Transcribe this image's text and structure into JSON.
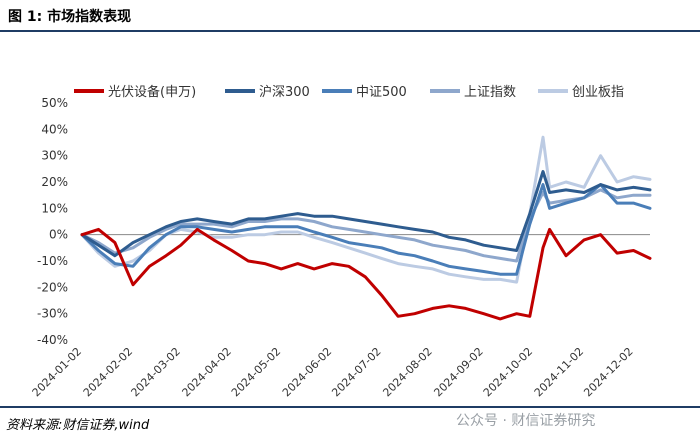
{
  "header": {
    "figure_title": "图 1:  市场指数表现"
  },
  "footer": {
    "source": "资料来源:财信证券,wind",
    "watermark": "公众号 · 财信证券研究"
  },
  "chart_data": {
    "type": "line",
    "title": "",
    "xlabel": "",
    "ylabel": "",
    "ylim": [
      -40,
      50
    ],
    "yticks": [
      -40,
      -30,
      -20,
      -10,
      0,
      10,
      20,
      30,
      40,
      50
    ],
    "ytick_labels": [
      "-40%",
      "-30%",
      "-20%",
      "-10%",
      "0%",
      "10%",
      "20%",
      "30%",
      "40%",
      "50%"
    ],
    "xticks": [
      "2024-01-02",
      "2024-02-02",
      "2024-03-02",
      "2024-04-02",
      "2024-05-02",
      "2024-06-02",
      "2024-07-02",
      "2024-08-02",
      "2024-09-02",
      "2024-10-02",
      "2024-11-02",
      "2024-12-02"
    ],
    "grid": false,
    "legend_position": "top",
    "x": [
      "2024-01-02",
      "2024-01-12",
      "2024-01-22",
      "2024-02-02",
      "2024-02-12",
      "2024-02-22",
      "2024-03-02",
      "2024-03-12",
      "2024-03-22",
      "2024-04-02",
      "2024-04-12",
      "2024-04-22",
      "2024-05-02",
      "2024-05-12",
      "2024-05-22",
      "2024-06-02",
      "2024-06-12",
      "2024-06-22",
      "2024-07-02",
      "2024-07-12",
      "2024-07-22",
      "2024-08-02",
      "2024-08-12",
      "2024-08-22",
      "2024-09-02",
      "2024-09-12",
      "2024-09-22",
      "2024-09-30",
      "2024-10-08",
      "2024-10-12",
      "2024-10-22",
      "2024-11-02",
      "2024-11-12",
      "2024-11-22",
      "2024-12-02",
      "2024-12-12"
    ],
    "series": [
      {
        "name": "光伏设备(申万)",
        "color": "#c00000",
        "width": 3,
        "values": [
          0,
          2,
          -3,
          -19,
          -12,
          -8,
          -4,
          2,
          -2,
          -6,
          -10,
          -11,
          -13,
          -11,
          -13,
          -11,
          -12,
          -16,
          -23,
          -31,
          -30,
          -28,
          -27,
          -28,
          -30,
          -32,
          -30,
          -31,
          -5,
          2,
          -8,
          -2,
          0,
          -7,
          -6,
          -9
        ]
      },
      {
        "name": "沪深300",
        "color": "#2e5c8f",
        "width": 3,
        "values": [
          0,
          -4,
          -8,
          -3,
          0,
          3,
          5,
          6,
          5,
          4,
          6,
          6,
          7,
          8,
          7,
          7,
          6,
          5,
          4,
          3,
          2,
          1,
          -1,
          -2,
          -4,
          -5,
          -6,
          8,
          24,
          16,
          17,
          16,
          19,
          17,
          18,
          17
        ]
      },
      {
        "name": "中证500",
        "color": "#4a7eb8",
        "width": 3,
        "values": [
          0,
          -6,
          -11,
          -12,
          -5,
          0,
          3,
          3,
          2,
          1,
          2,
          3,
          3,
          3,
          1,
          -1,
          -3,
          -4,
          -5,
          -7,
          -8,
          -10,
          -12,
          -13,
          -14,
          -15,
          -15,
          4,
          19,
          10,
          12,
          14,
          19,
          12,
          12,
          10
        ]
      },
      {
        "name": "上证指数",
        "color": "#8ea7cc",
        "width": 3,
        "values": [
          0,
          -3,
          -7,
          -5,
          -1,
          2,
          4,
          4,
          4,
          3,
          5,
          5,
          6,
          6,
          5,
          3,
          2,
          1,
          0,
          -1,
          -2,
          -4,
          -5,
          -6,
          -8,
          -9,
          -10,
          6,
          16,
          12,
          13,
          14,
          17,
          14,
          15,
          15
        ]
      },
      {
        "name": "创业板指",
        "color": "#bccbe3",
        "width": 3,
        "values": [
          0,
          -7,
          -12,
          -10,
          -6,
          0,
          2,
          1,
          -1,
          -1,
          0,
          0,
          1,
          1,
          -1,
          -3,
          -5,
          -7,
          -9,
          -11,
          -12,
          -13,
          -15,
          -16,
          -17,
          -17,
          -18,
          8,
          37,
          18,
          20,
          18,
          30,
          20,
          22,
          21
        ]
      }
    ]
  }
}
